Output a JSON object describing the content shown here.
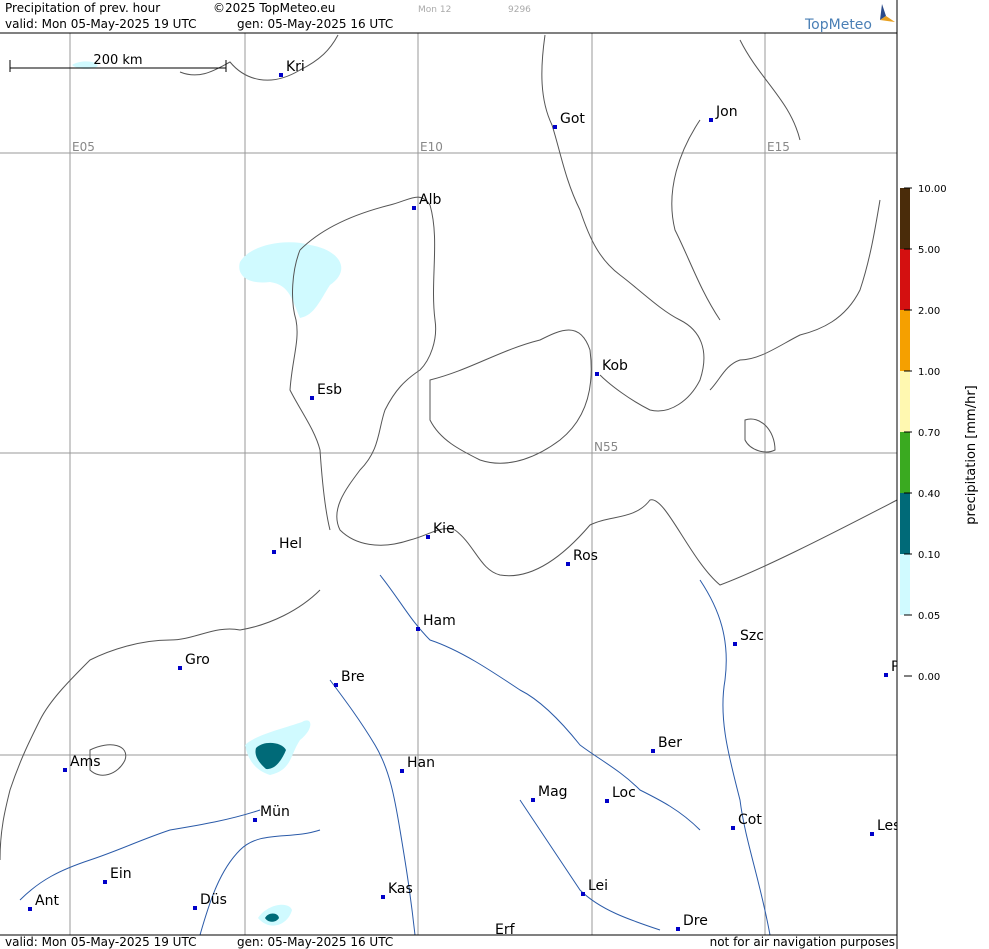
{
  "header": {
    "product": "Precipitation of prev. hour",
    "copyright": "©2025 TopMeteo.eu",
    "faint1": "Mon 12",
    "faint2": "9296",
    "valid": "valid:  Mon  05-May-2025  19 UTC",
    "gen": "gen: 05-May-2025 16 UTC",
    "logo": "TopMeteo"
  },
  "scale": "200 km",
  "grid_labels": [
    "E05",
    "E10",
    "E15",
    "N55"
  ],
  "cities": [
    "Kri",
    "Got",
    "Jon",
    "Alb",
    "Kob",
    "Esb",
    "Kie",
    "Hel",
    "Ros",
    "Ham",
    "Szc",
    "Gro",
    "Bre",
    "P",
    "Ber",
    "Ams",
    "Han",
    "Mag",
    "Loc",
    "Mün",
    "Cot",
    "Les",
    "Ein",
    "Kas",
    "Lei",
    "Ant",
    "Düs",
    "Dre",
    "Erf"
  ],
  "legend": {
    "title": "precipitation  [mm/hr]",
    "ticks": [
      "10.00",
      "5.00",
      "2.00",
      "1.00",
      "0.70",
      "0.40",
      "0.10",
      "0.05",
      "0.00"
    ],
    "colors": [
      "#4a2c0a",
      "#d41010",
      "#f5a000",
      "#fff8b0",
      "#3aaa20",
      "#006a78",
      "#d0faff"
    ]
  },
  "footer": {
    "valid": "valid:  Mon  05-May-2025  19 UTC",
    "gen": "gen: 05-May-2025 16 UTC",
    "note": "not for air navigation purposes"
  }
}
